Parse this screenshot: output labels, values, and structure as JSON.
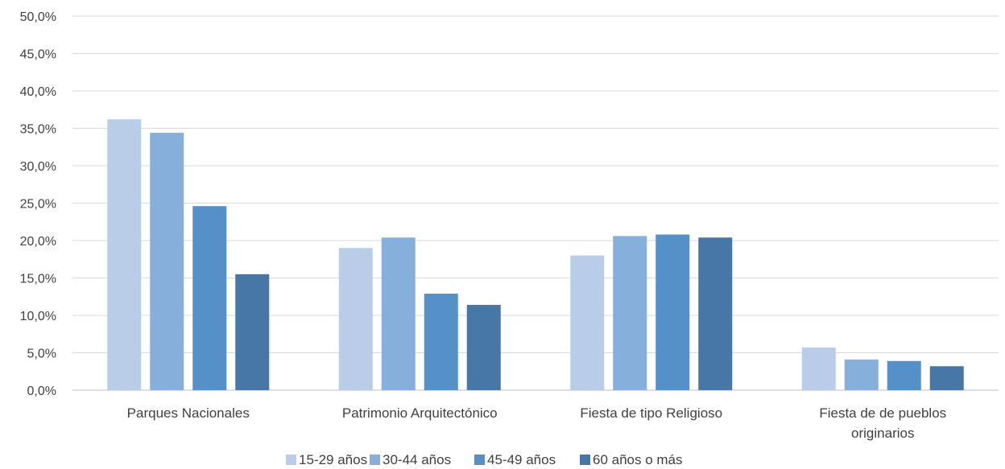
{
  "chart_data": {
    "type": "bar",
    "title": "",
    "xlabel": "",
    "ylabel": "",
    "ylim": [
      0,
      50
    ],
    "y_ticks": [
      "0,0%",
      "5,0%",
      "10,0%",
      "15,0%",
      "20,0%",
      "25,0%",
      "30,0%",
      "35,0%",
      "40,0%",
      "45,0%",
      "50,0%"
    ],
    "grid": true,
    "legend_position": "bottom",
    "categories": [
      [
        "Parques Nacionales"
      ],
      [
        "Patrimonio Arquitectónico"
      ],
      [
        "Fiesta de tipo Religioso"
      ],
      [
        "Fiesta de de pueblos",
        "originarios"
      ]
    ],
    "series": [
      {
        "name": "15-29 años",
        "color": "#b9cde8",
        "values": [
          36.2,
          19.0,
          18.0,
          5.7
        ]
      },
      {
        "name": "30-44 años",
        "color": "#86afdc",
        "values": [
          34.4,
          20.4,
          20.6,
          4.1
        ]
      },
      {
        "name": "45-49 años",
        "color": "#5590c8",
        "values": [
          24.6,
          12.9,
          20.8,
          3.9
        ]
      },
      {
        "name": "60 años o más",
        "color": "#4677a7",
        "values": [
          15.5,
          11.4,
          20.4,
          3.2
        ]
      }
    ]
  }
}
